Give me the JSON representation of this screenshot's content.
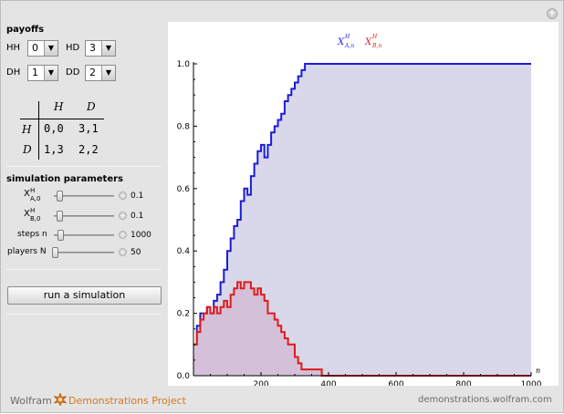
{
  "panel": {
    "payoffs_title": "payoffs",
    "hh_label": "HH",
    "hh_value": "0",
    "hd_label": "HD",
    "hd_value": "3",
    "dh_label": "DH",
    "dh_value": "1",
    "dd_label": "DD",
    "dd_value": "2",
    "matrix": {
      "col_h": "H",
      "col_d": "D",
      "row_h": "H",
      "row_d": "D",
      "cell_hh": "0,0",
      "cell_hd": "3,1",
      "cell_dh": "1,3",
      "cell_dd": "2,2"
    },
    "sim_title": "simulation parameters",
    "xa_label_base": "X",
    "xa_sup": "H",
    "xa_sub": "A,0",
    "xa_value": "0.1",
    "xa_fraction": 0.1,
    "xb_label_base": "X",
    "xb_sup": "H",
    "xb_sub": "B,0",
    "xb_value": "0.1",
    "xb_fraction": 0.1,
    "steps_label": "steps n",
    "steps_value": "1000",
    "players_label": "players N",
    "players_value": "50",
    "run_button": "run a simulation"
  },
  "footer": {
    "wolfram": "Wolfram",
    "demos": "Demonstrations Project",
    "url": "demonstrations.wolfram.com"
  },
  "colors": {
    "series_a": "#1c1cd8",
    "series_b": "#e01a1a",
    "fill_a": "#d8d8ea",
    "fill_b": "#d4bcd6",
    "accent": "#d4781e"
  },
  "chart_data": {
    "type": "line",
    "legend": [
      {
        "base": "X",
        "sup": "H",
        "sub": "A,n"
      },
      {
        "base": "X",
        "sup": "H",
        "sub": "B,n"
      }
    ],
    "xlabel": "n",
    "xlim": [
      0,
      1000
    ],
    "ylim": [
      0,
      1.0
    ],
    "xticks": [
      200,
      400,
      600,
      800,
      1000
    ],
    "yticks": [
      0.0,
      0.2,
      0.4,
      0.6,
      0.8,
      1.0
    ],
    "xtick_labels": [
      "200",
      "400",
      "600",
      "800",
      "1000"
    ],
    "ytick_labels": [
      "0.0",
      "0.2",
      "0.4",
      "0.6",
      "0.8",
      "1.0"
    ],
    "series": [
      {
        "x": [
          0,
          10,
          20,
          30,
          40,
          50,
          60,
          70,
          80,
          90,
          100,
          110,
          120,
          130,
          140,
          150,
          160,
          170,
          180,
          190,
          200,
          210,
          220,
          230,
          240,
          250,
          260,
          270,
          280,
          290,
          300,
          310,
          320,
          330,
          340,
          350,
          360,
          370,
          380,
          1000
        ],
        "y": [
          0.1,
          0.16,
          0.2,
          0.2,
          0.22,
          0.2,
          0.24,
          0.26,
          0.3,
          0.34,
          0.4,
          0.44,
          0.48,
          0.5,
          0.56,
          0.6,
          0.58,
          0.64,
          0.68,
          0.72,
          0.74,
          0.7,
          0.74,
          0.78,
          0.8,
          0.82,
          0.84,
          0.88,
          0.9,
          0.92,
          0.94,
          0.96,
          0.98,
          1.0,
          1.0,
          1.0,
          1.0,
          1.0,
          1.0,
          1.0
        ]
      },
      {
        "x": [
          0,
          10,
          20,
          30,
          40,
          50,
          60,
          70,
          80,
          90,
          100,
          110,
          120,
          130,
          140,
          150,
          160,
          170,
          180,
          190,
          200,
          210,
          220,
          230,
          240,
          250,
          260,
          270,
          280,
          290,
          300,
          310,
          320,
          330,
          340,
          350,
          360,
          370,
          380,
          400,
          420,
          440,
          460,
          1000
        ],
        "y": [
          0.1,
          0.14,
          0.18,
          0.2,
          0.22,
          0.2,
          0.22,
          0.2,
          0.22,
          0.24,
          0.22,
          0.26,
          0.28,
          0.3,
          0.28,
          0.3,
          0.3,
          0.28,
          0.26,
          0.28,
          0.26,
          0.24,
          0.2,
          0.2,
          0.18,
          0.16,
          0.14,
          0.12,
          0.1,
          0.1,
          0.06,
          0.04,
          0.02,
          0.02,
          0.02,
          0.02,
          0.02,
          0.02,
          0.0,
          0.0,
          0.0,
          0.0,
          0.0,
          0.0
        ]
      }
    ]
  }
}
